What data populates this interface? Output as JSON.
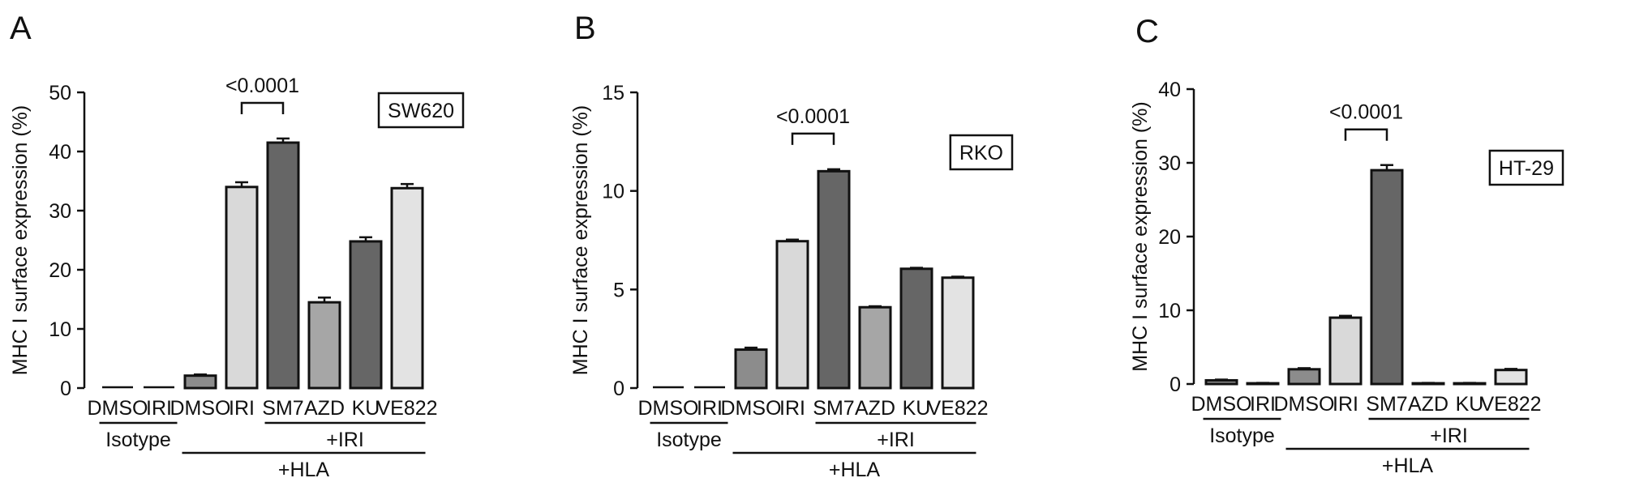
{
  "chart_data": [
    {
      "panel_label": "A",
      "type": "bar",
      "cell_line": "SW620",
      "ylabel": "MHC I surface expression (%)",
      "ylim": [
        0,
        50
      ],
      "yticks": [
        0,
        10,
        20,
        30,
        40,
        50
      ],
      "categories": [
        "DMSO",
        "IRI",
        "DMSO",
        "IRI",
        "SM7",
        "AZD",
        "KU",
        "VE822"
      ],
      "values": [
        0,
        0,
        2.1,
        34.0,
        41.5,
        14.5,
        24.8,
        33.8
      ],
      "errors": [
        0,
        0,
        0.2,
        0.8,
        0.7,
        0.8,
        0.7,
        0.7
      ],
      "bar_colors": [
        "#8c8c8c",
        "#d9d9d9",
        "#8c8c8c",
        "#d9d9d9",
        "#666666",
        "#a6a6a6",
        "#666666",
        "#e3e3e3"
      ],
      "significance": {
        "from": 3,
        "to": 4,
        "label": "<0.0001"
      },
      "groups": [
        {
          "label": "Isotype",
          "from": 0,
          "to": 1,
          "level": 1
        },
        {
          "label": "+IRI",
          "from": 4,
          "to": 7,
          "level": 1
        },
        {
          "label": "+HLA",
          "from": 2,
          "to": 7,
          "level": 2
        }
      ]
    },
    {
      "panel_label": "B",
      "type": "bar",
      "cell_line": "RKO",
      "ylabel": "MHC I surface expression (%)",
      "ylim": [
        0,
        15
      ],
      "yticks": [
        0,
        5,
        10,
        15
      ],
      "categories": [
        "DMSO",
        "IRI",
        "DMSO",
        "IRI",
        "SM7",
        "AZD",
        "KU",
        "VE822"
      ],
      "values": [
        0,
        0,
        1.95,
        7.45,
        11.0,
        4.1,
        6.05,
        5.6
      ],
      "errors": [
        0,
        0,
        0.1,
        0.08,
        0.1,
        0.05,
        0.05,
        0.05
      ],
      "bar_colors": [
        "#8c8c8c",
        "#d9d9d9",
        "#8c8c8c",
        "#d9d9d9",
        "#666666",
        "#a6a6a6",
        "#666666",
        "#e3e3e3"
      ],
      "significance": {
        "from": 3,
        "to": 4,
        "label": "<0.0001"
      },
      "groups": [
        {
          "label": "Isotype",
          "from": 0,
          "to": 1,
          "level": 1
        },
        {
          "label": "+IRI",
          "from": 4,
          "to": 7,
          "level": 1
        },
        {
          "label": "+HLA",
          "from": 2,
          "to": 7,
          "level": 2
        }
      ]
    },
    {
      "panel_label": "C",
      "type": "bar",
      "cell_line": "HT-29",
      "ylabel": "MHC I surface expression (%)",
      "ylim": [
        0,
        40
      ],
      "yticks": [
        0,
        10,
        20,
        30,
        40
      ],
      "categories": [
        "DMSO",
        "IRI",
        "DMSO",
        "IRI",
        "SM7",
        "AZD",
        "KU",
        "VE822"
      ],
      "values": [
        0.5,
        0.1,
        2.0,
        9.0,
        29.0,
        0.1,
        0.1,
        1.9
      ],
      "errors": [
        0.1,
        0.05,
        0.15,
        0.25,
        0.7,
        0.05,
        0.05,
        0.15
      ],
      "bar_colors": [
        "#8c8c8c",
        "#d9d9d9",
        "#8c8c8c",
        "#d9d9d9",
        "#666666",
        "#a6a6a6",
        "#666666",
        "#e3e3e3"
      ],
      "significance": {
        "from": 3,
        "to": 4,
        "label": "<0.0001"
      },
      "groups": [
        {
          "label": "Isotype",
          "from": 0,
          "to": 1,
          "level": 1
        },
        {
          "label": "+IRI",
          "from": 4,
          "to": 7,
          "level": 1
        },
        {
          "label": "+HLA",
          "from": 2,
          "to": 7,
          "level": 2
        }
      ]
    }
  ]
}
